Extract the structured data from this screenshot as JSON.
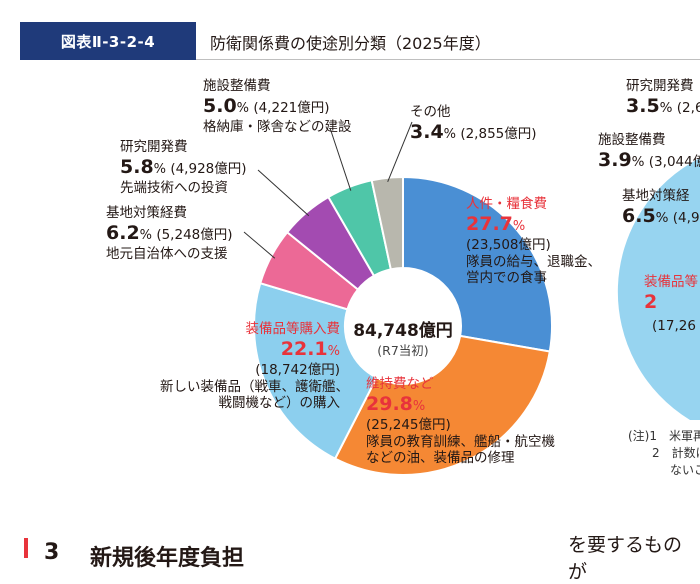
{
  "header": {
    "figure_label": "図表Ⅱ-3-2-4",
    "figure_title": "防衛関係費の使途別分類（2025年度）"
  },
  "center": {
    "total": "84,748億円",
    "note": "(R7当初)"
  },
  "chart_data": {
    "type": "pie",
    "title": "防衛関係費の使途別分類（2025年度）",
    "total": "84,748億円",
    "total_note": "(R7当初)",
    "unit": "億円",
    "slices": [
      {
        "category": "人件・糧食費",
        "percent": 27.7,
        "percent_text": "27.7",
        "amount": "(23,508億円)",
        "value": 23508,
        "desc_lines": [
          "隊員の給与、退職金、",
          "営内での食事"
        ],
        "color": "#4a8fd4"
      },
      {
        "category": "維持費など",
        "percent": 29.8,
        "percent_text": "29.8",
        "amount": "(25,245億円)",
        "value": 25245,
        "desc_lines": [
          "隊員の教育訓練、艦船・航空機",
          "などの油、装備品の修理"
        ],
        "color": "#f58834"
      },
      {
        "category": "装備品等購入費",
        "percent": 22.1,
        "percent_text": "22.1",
        "amount": "(18,742億円)",
        "value": 18742,
        "desc_lines": [
          "新しい装備品（戦車、護衛艦、",
          "戦闘機など）の購入"
        ],
        "color": "#8ccfee"
      },
      {
        "category": "基地対策経費",
        "percent": 6.2,
        "percent_text": "6.2",
        "amount": "(5,248億円)",
        "value": 5248,
        "desc_lines": [
          "地元自治体への支援"
        ],
        "color": "#ec6996"
      },
      {
        "category": "研究開発費",
        "percent": 5.8,
        "percent_text": "5.8",
        "amount": "(4,928億円)",
        "value": 4928,
        "desc_lines": [
          "先端技術への投資"
        ],
        "color": "#a34bb1"
      },
      {
        "category": "施設整備費",
        "percent": 5.0,
        "percent_text": "5.0",
        "amount": "(4,221億円)",
        "value": 4221,
        "desc_lines": [
          "格納庫・隊舎などの建設"
        ],
        "color": "#4fc6a8"
      },
      {
        "category": "その他",
        "percent": 3.4,
        "percent_text": "3.4",
        "amount": "(2,855億円)",
        "value": 2855,
        "desc_lines": [],
        "color": "#b8b7ad"
      }
    ]
  },
  "right_peek": {
    "r1_cat": "研究開発費",
    "r1_pct": "3.5",
    "r1_amt": "% (2,6",
    "r2_cat": "施設整備費",
    "r2_pct": "3.9",
    "r2_amt": "% (3,044億",
    "r3_cat": "基地対策経",
    "r3_pct": "6.5",
    "r3_amt": "% (4,9",
    "r4_cat": "装備品等",
    "r4_pct": "2",
    "r4_amt": "(17,26",
    "note_1": "(注)1　米軍再",
    "note_2": "2　計数は",
    "note_3": "ないこ"
  },
  "footer": {
    "section_num": "3",
    "section_title": "新規後年度負担",
    "body_text": "を要するものが"
  },
  "common": {
    "percent_sign": "%"
  }
}
